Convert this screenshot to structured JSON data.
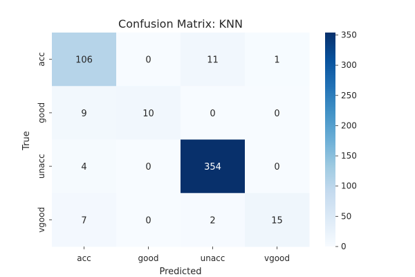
{
  "chart_data": {
    "type": "heatmap",
    "title": "Confusion Matrix: KNN",
    "xlabel": "Predicted",
    "ylabel": "True",
    "x_categories": [
      "acc",
      "good",
      "unacc",
      "vgood"
    ],
    "y_categories": [
      "acc",
      "good",
      "unacc",
      "vgood"
    ],
    "matrix": [
      [
        106,
        0,
        11,
        1
      ],
      [
        9,
        10,
        0,
        0
      ],
      [
        4,
        0,
        354,
        0
      ],
      [
        7,
        0,
        2,
        15
      ]
    ],
    "colormap": "Blues",
    "colorbar": {
      "range": [
        0,
        354
      ],
      "ticks": [
        0,
        50,
        100,
        150,
        200,
        250,
        300,
        350
      ]
    },
    "grid": false
  }
}
